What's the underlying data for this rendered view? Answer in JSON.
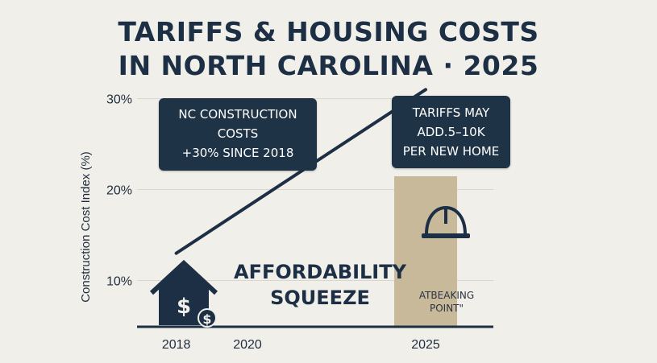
{
  "title": {
    "line1": "TARIFFS & HOUSING COSTS",
    "line2": "IN NORTH CAROLINA · 2025"
  },
  "chart_data": {
    "type": "line",
    "xlabel": "",
    "ylabel": "Construction Cost Index (%)",
    "categories": [
      "2018",
      "2020",
      "2025"
    ],
    "y_ticks": [
      "10%",
      "20%",
      "30%"
    ],
    "ylim": [
      5,
      32
    ],
    "grid": true,
    "series": [
      {
        "x": [
          2018,
          2025
        ],
        "y": [
          13,
          31
        ]
      }
    ],
    "highlight_year": 2025,
    "colors": {
      "line": "#1c2f44",
      "highlight_bar": "#c9b99b",
      "callout_bg": "#1f3346",
      "axis": "#1c2f44"
    }
  },
  "callouts": {
    "left": [
      "NC CONSTRUCTION",
      "COSTS",
      "+30% SINCE 2018"
    ],
    "right": [
      "TARIFFS MAY",
      "ADD.5–10K",
      "PER NEW HOME"
    ]
  },
  "annotation": {
    "squeeze_line1": "AFFORDABILITY",
    "squeeze_line2": "SQUEEZE",
    "breaking_line1": "ATBEAKING",
    "breaking_line2": "POINT\""
  },
  "icons": {
    "house": "house-dollar-icon",
    "helmet": "hard-hat-icon"
  }
}
